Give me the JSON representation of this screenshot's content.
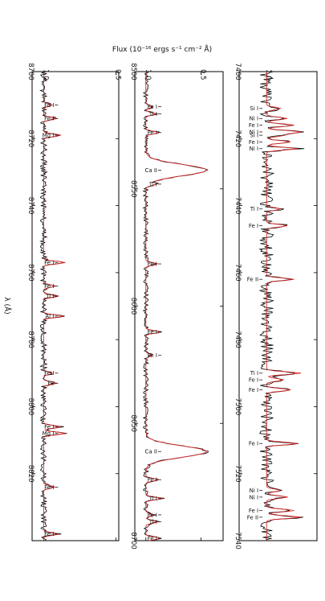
{
  "figure": {
    "ylabel": "Flux (10⁻¹⁶ ergs s⁻¹ cm⁻² Å)",
    "xlabel": "λ (Å)"
  },
  "colors": {
    "observed": "#000000",
    "model": "#d62728",
    "frame": "#000000"
  },
  "chart_data": [
    {
      "type": "line",
      "panel": "top",
      "xlim": [
        7400,
        7540
      ],
      "ylim": [
        0.78,
        1.12
      ],
      "x_ticks": [
        7400,
        7420,
        7440,
        7460,
        7480,
        7500,
        7520,
        7540
      ],
      "y_ticks": [
        1.0
      ],
      "y_tick_labels": [
        "1.0"
      ],
      "lines": [
        {
          "x": 7411,
          "label": "Si I"
        },
        {
          "x": 7414,
          "label": "Ni I"
        },
        {
          "x": 7416,
          "label": "Fe I"
        },
        {
          "x": 7418,
          "label": "Ni I"
        },
        {
          "x": 7419,
          "label": "Si I"
        },
        {
          "x": 7421,
          "label": "Fe I"
        },
        {
          "x": 7423,
          "label": "Ni I"
        },
        {
          "x": 7441,
          "label": "Ti I"
        },
        {
          "x": 7446,
          "label": "Fe I"
        },
        {
          "x": 7462,
          "label": "Fe II"
        },
        {
          "x": 7490,
          "label": "Ti I"
        },
        {
          "x": 7492,
          "label": "Fe I"
        },
        {
          "x": 7495,
          "label": "Fe I"
        },
        {
          "x": 7511,
          "label": "Fe I"
        },
        {
          "x": 7525,
          "label": "Ni I"
        },
        {
          "x": 7527,
          "label": "Ni I"
        },
        {
          "x": 7531,
          "label": "Fe I"
        },
        {
          "x": 7533,
          "label": "Fe II"
        }
      ]
    },
    {
      "type": "line",
      "panel": "middle",
      "xlim": [
        8500,
        8700
      ],
      "ylim": [
        0.3,
        1.1
      ],
      "x_ticks": [
        8500,
        8550,
        8600,
        8650,
        8700
      ],
      "y_ticks": [
        0.5,
        1.0
      ],
      "y_tick_labels": [
        "0.5",
        "1.0"
      ],
      "lines": [
        {
          "x": 8515,
          "label": "Fe I"
        },
        {
          "x": 8518,
          "label": "Ti I"
        },
        {
          "x": 8526,
          "label": "Fe I"
        },
        {
          "x": 8542,
          "label": "Ca II"
        },
        {
          "x": 8548,
          "label": "Ti I"
        },
        {
          "x": 8582,
          "label": "Fe I"
        },
        {
          "x": 8611,
          "label": "Fe I"
        },
        {
          "x": 8621,
          "label": "Fe I"
        },
        {
          "x": 8662,
          "label": "Ca II"
        },
        {
          "x": 8674,
          "label": "Fe I"
        },
        {
          "x": 8682,
          "label": "Ti I"
        },
        {
          "x": 8689,
          "label": "Fe I"
        },
        {
          "x": 8692,
          "label": "Ti I"
        },
        {
          "x": 8699,
          "label": "Fe I"
        }
      ]
    },
    {
      "type": "line",
      "panel": "bottom",
      "xlim": [
        8700,
        8840
      ],
      "ylim": [
        0.48,
        1.08
      ],
      "x_ticks": [
        8700,
        8720,
        8740,
        8760,
        8780,
        8800,
        8820
      ],
      "y_ticks": [
        0.5,
        1.0
      ],
      "y_tick_labels": [
        "0.5",
        "1.0"
      ],
      "lines": [
        {
          "x": 8710,
          "label": "Fe I"
        },
        {
          "x": 8714,
          "label": "Fe I"
        },
        {
          "x": 8719,
          "label": "Mg I"
        },
        {
          "x": 8757,
          "label": "Fe I"
        },
        {
          "x": 8764,
          "label": "Fe I"
        },
        {
          "x": 8767,
          "label": "Ti I"
        },
        {
          "x": 8773,
          "label": "Al I"
        },
        {
          "x": 8790,
          "label": "Fe I"
        },
        {
          "x": 8793,
          "label": "Fe"
        },
        {
          "x": 8806,
          "label": "Fe I"
        },
        {
          "x": 8808,
          "label": "Mg I"
        },
        {
          "x": 8824,
          "label": "Fe I"
        },
        {
          "x": 8838,
          "label": "Fe I"
        }
      ]
    }
  ]
}
